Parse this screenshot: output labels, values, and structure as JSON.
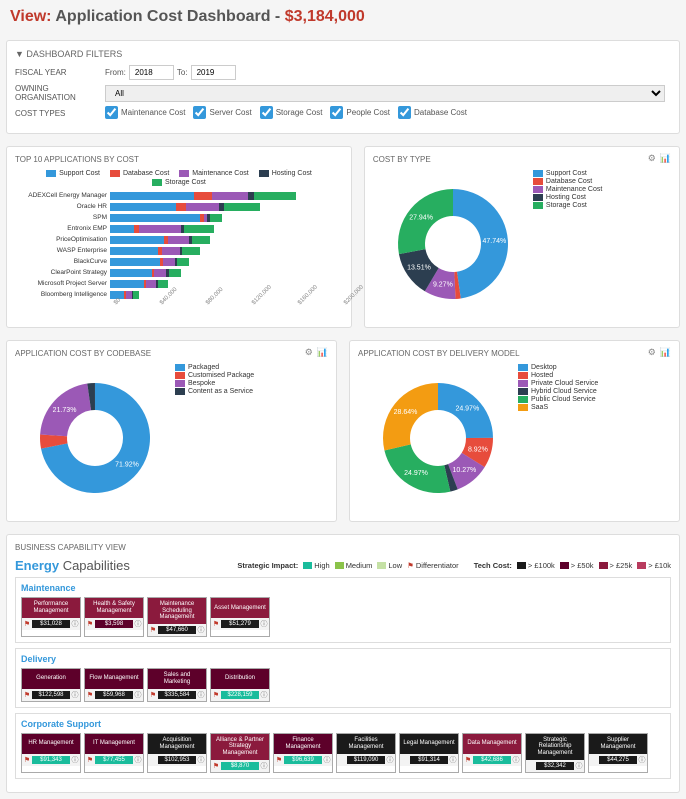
{
  "header": {
    "view_label": "View:",
    "title": "Application Cost Dashboard",
    "separator": " - ",
    "amount": "$3,184,000"
  },
  "filters": {
    "section_title": "▼  DASHBOARD FILTERS",
    "fiscal_year": {
      "label": "FISCAL YEAR",
      "from_label": "From:",
      "from": "2018",
      "to_label": "To:",
      "to": "2019"
    },
    "owning_org": {
      "label": "OWNING ORGANISATION",
      "value": "All"
    },
    "cost_types": {
      "label": "COST TYPES",
      "items": [
        {
          "label": "Maintenance Cost",
          "checked": true
        },
        {
          "label": "Server Cost",
          "checked": true
        },
        {
          "label": "Storage Cost",
          "checked": true
        },
        {
          "label": "People Cost",
          "checked": true
        },
        {
          "label": "Database Cost",
          "checked": true
        }
      ]
    }
  },
  "colors": {
    "support": "#3498db",
    "database": "#e74c3c",
    "maintenance": "#9b59b6",
    "hosting": "#2c3e50",
    "storage": "#27ae60",
    "packaged": "#3498db",
    "custpkg": "#e74c3c",
    "bespoke": "#9b59b6",
    "caas": "#2c3e50",
    "desktop": "#3498db",
    "hosted": "#e74c3c",
    "privcloud": "#9b59b6",
    "hybcloud": "#2c3e50",
    "pubcloud": "#27ae60",
    "saas": "#f39c12",
    "high": "#1abc9c",
    "medium": "#8bc34a",
    "low": "#c5e1a5",
    "diff": "#c0392b",
    "cost100": "#1a1a1a",
    "cost50": "#5d002a",
    "cost25": "#8b1a3d",
    "cost10": "#b83b5e"
  },
  "top10": {
    "title": "TOP 10 APPLICATIONS BY COST",
    "legend": [
      {
        "label": "Support Cost",
        "c": "support"
      },
      {
        "label": "Database Cost",
        "c": "database"
      },
      {
        "label": "Maintenance Cost",
        "c": "maintenance"
      },
      {
        "label": "Hosting Cost",
        "c": "hosting"
      },
      {
        "label": "Storage Cost",
        "c": "storage"
      }
    ],
    "apps": [
      {
        "name": "ADEXCell Energy Manager",
        "seg": [
          70,
          15,
          30,
          5,
          35
        ]
      },
      {
        "name": "Oracle HR",
        "seg": [
          55,
          8,
          28,
          4,
          30
        ]
      },
      {
        "name": "SPM",
        "seg": [
          75,
          3,
          3,
          2,
          10
        ]
      },
      {
        "name": "Entronix EMP",
        "seg": [
          20,
          4,
          35,
          3,
          25
        ]
      },
      {
        "name": "PriceOptimisation",
        "seg": [
          45,
          3,
          18,
          2,
          15
        ]
      },
      {
        "name": "WASP Enterprise",
        "seg": [
          40,
          3,
          15,
          2,
          15
        ]
      },
      {
        "name": "BlackCurve",
        "seg": [
          42,
          2,
          10,
          2,
          10
        ]
      },
      {
        "name": "ClearPoint Strategy",
        "seg": [
          35,
          2,
          10,
          2,
          10
        ]
      },
      {
        "name": "Microsoft Project Server",
        "seg": [
          28,
          2,
          8,
          2,
          8
        ]
      },
      {
        "name": "Bloomberg Intelligence",
        "seg": [
          12,
          1,
          5,
          1,
          5
        ]
      }
    ],
    "xaxis": [
      "$0",
      "$40,000",
      "$80,000",
      "$120,000",
      "$160,000",
      "$200,000"
    ]
  },
  "costByType": {
    "title": "COST BY TYPE",
    "slices": [
      {
        "label": "Support Cost",
        "pct": 47.74,
        "c": "support",
        "txt": "47.74%"
      },
      {
        "label": "Database Cost",
        "pct": 1.54,
        "c": "database",
        "txt": "1.54%"
      },
      {
        "label": "Maintenance Cost",
        "pct": 9.27,
        "c": "maintenance",
        "txt": "9.27%"
      },
      {
        "label": "Hosting Cost",
        "pct": 13.51,
        "c": "hosting",
        "txt": "13.51%"
      },
      {
        "label": "Storage Cost",
        "pct": 27.94,
        "c": "storage",
        "txt": "27.94%"
      }
    ]
  },
  "costByCodebase": {
    "title": "APPLICATION COST BY CODEBASE",
    "slices": [
      {
        "label": "Packaged",
        "pct": 71.92,
        "c": "packaged",
        "txt": "71.92%"
      },
      {
        "label": "Customised Package",
        "pct": 4.11,
        "c": "custpkg",
        "txt": "4.11%"
      },
      {
        "label": "Bespoke",
        "pct": 21.73,
        "c": "bespoke",
        "txt": "21.73%"
      },
      {
        "label": "Content as a Service",
        "pct": 2.23,
        "c": "caas",
        "txt": "2.23%"
      }
    ]
  },
  "costByDelivery": {
    "title": "APPLICATION COST BY DELIVERY MODEL",
    "slices": [
      {
        "label": "Desktop",
        "pct": 24.97,
        "c": "desktop",
        "txt": "24.97%"
      },
      {
        "label": "Hosted",
        "pct": 8.92,
        "c": "hosted",
        "txt": "8.92%"
      },
      {
        "label": "Private Cloud Service",
        "pct": 10.27,
        "c": "privcloud",
        "txt": "10.27%"
      },
      {
        "label": "Hybrid Cloud Service",
        "pct": 2.23,
        "c": "hybcloud",
        "txt": "2.23%"
      },
      {
        "label": "Public Cloud Service",
        "pct": 24.97,
        "c": "pubcloud",
        "txt": "24.97%"
      },
      {
        "label": "SaaS",
        "pct": 28.64,
        "c": "saas",
        "txt": "28.64%"
      }
    ]
  },
  "bcv": {
    "title": "BUSINESS CAPABILITY VIEW",
    "subtitle_prefix": "Energy",
    "subtitle_rest": " Capabilities",
    "legend_strategic": "Strategic Impact:",
    "legend_levels": [
      {
        "l": "High",
        "c": "high"
      },
      {
        "l": "Medium",
        "c": "medium"
      },
      {
        "l": "Low",
        "c": "low"
      }
    ],
    "legend_diff": "Differentiator",
    "legend_tech": "Tech Cost:",
    "legend_costs": [
      {
        "l": "> £100k",
        "c": "cost100"
      },
      {
        "l": "> £50k",
        "c": "cost50"
      },
      {
        "l": "> £25k",
        "c": "cost25"
      },
      {
        "l": "> £10k",
        "c": "cost10"
      }
    ],
    "groups": [
      {
        "name": "Maintenance",
        "tiles": [
          {
            "t": "Performance Management",
            "hc": "cost25",
            "cost": "$31,028",
            "cc": "cost100",
            "diff": true
          },
          {
            "t": "Health & Safety Management",
            "hc": "cost25",
            "cost": "$3,598",
            "cc": "cost50",
            "diff": true
          },
          {
            "t": "Maintenance Scheduling Management",
            "hc": "cost25",
            "cost": "$47,660",
            "cc": "cost100",
            "diff": true
          },
          {
            "t": "Asset Management",
            "hc": "cost25",
            "cost": "$51,279",
            "cc": "cost100",
            "diff": true
          }
        ]
      },
      {
        "name": "Delivery",
        "tiles": [
          {
            "t": "Generation",
            "hc": "cost50",
            "cost": "$122,598",
            "cc": "cost100",
            "diff": true
          },
          {
            "t": "Flow Management",
            "hc": "cost50",
            "cost": "$59,968",
            "cc": "cost100",
            "diff": true
          },
          {
            "t": "Sales and Marketing",
            "hc": "cost50",
            "cost": "$335,584",
            "cc": "cost100",
            "diff": true
          },
          {
            "t": "Distribution",
            "hc": "cost50",
            "cost": "$228,159",
            "cc": "high",
            "diff": true
          }
        ]
      },
      {
        "name": "Corporate Support",
        "tiles": [
          {
            "t": "HR Management",
            "hc": "cost50",
            "cost": "$91,343",
            "cc": "high",
            "diff": true
          },
          {
            "t": "IT Management",
            "hc": "cost50",
            "cost": "$77,455",
            "cc": "high",
            "diff": true
          },
          {
            "t": "Acquisition Management",
            "hc": "cost100",
            "cost": "$102,953",
            "cc": "cost100",
            "diff": false
          },
          {
            "t": "Alliance & Partner Strategy Management",
            "hc": "cost25",
            "cost": "$8,870",
            "cc": "high",
            "diff": true
          },
          {
            "t": "Finance Management",
            "hc": "cost50",
            "cost": "$96,639",
            "cc": "high",
            "diff": true
          },
          {
            "t": "Facilities Management",
            "hc": "cost100",
            "cost": "$119,090",
            "cc": "cost100",
            "diff": false
          },
          {
            "t": "Legal Management",
            "hc": "cost100",
            "cost": "$91,314",
            "cc": "cost100",
            "diff": false
          },
          {
            "t": "Data Management",
            "hc": "cost25",
            "cost": "$42,686",
            "cc": "high",
            "diff": true
          },
          {
            "t": "Strategic Relationship Management",
            "hc": "cost100",
            "cost": "$32,342",
            "cc": "cost100",
            "diff": false
          },
          {
            "t": "Supplier Management",
            "hc": "cost100",
            "cost": "$44,275",
            "cc": "cost100",
            "diff": false
          }
        ]
      }
    ]
  }
}
